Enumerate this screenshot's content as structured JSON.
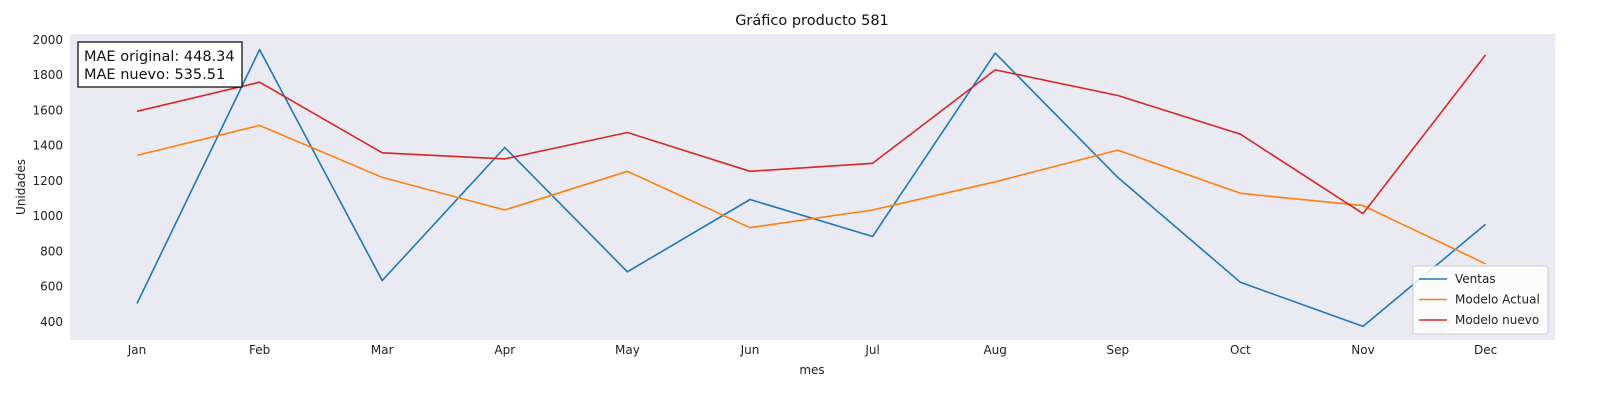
{
  "chart_data": {
    "type": "line",
    "title": "Gráfico producto 581",
    "xlabel": "mes",
    "ylabel": "Unidades",
    "categories": [
      "Jan",
      "Feb",
      "Mar",
      "Apr",
      "May",
      "Jun",
      "Jul",
      "Aug",
      "Sep",
      "Oct",
      "Nov",
      "Dec"
    ],
    "yticks": [
      400,
      600,
      800,
      1000,
      1200,
      1400,
      1600,
      1800,
      2000
    ],
    "ylim": [
      300,
      2030
    ],
    "grid": false,
    "legend_position": "lower-right",
    "series": [
      {
        "name": "Ventas",
        "color": "#1f77b4",
        "values": [
          505,
          1945,
          635,
          1390,
          685,
          1095,
          885,
          1925,
          1220,
          625,
          375,
          955
        ]
      },
      {
        "name": "Modelo Actual",
        "color": "#ff7f0e",
        "values": [
          1345,
          1515,
          1220,
          1035,
          1255,
          935,
          1035,
          1195,
          1375,
          1130,
          1060,
          730
        ]
      },
      {
        "name": "Modelo nuevo",
        "color": "#d62728",
        "values": [
          1595,
          1760,
          1360,
          1325,
          1475,
          1255,
          1300,
          1830,
          1685,
          1465,
          1015,
          1915
        ]
      }
    ],
    "annotation": {
      "line1": "MAE original: 448.34",
      "line2": "MAE nuevo: 535.51"
    }
  },
  "colors": {
    "plot_background": "#eaeaf2",
    "page_background": "#ffffff"
  }
}
